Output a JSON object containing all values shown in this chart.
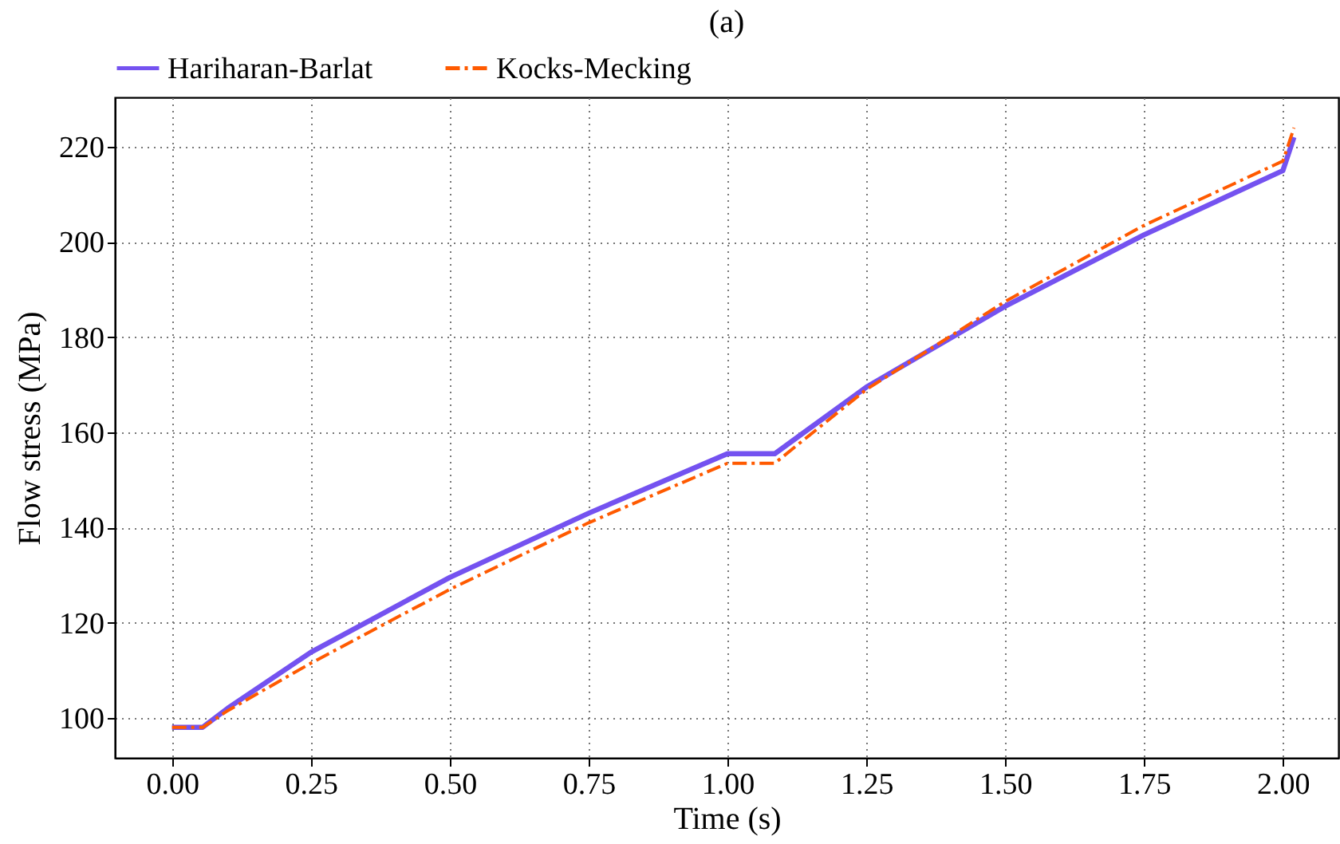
{
  "chart_data": {
    "type": "line",
    "title": "(a)",
    "xlabel": "Time (s)",
    "ylabel": "Flow stress (MPa)",
    "xlim": [
      -0.103,
      2.1
    ],
    "xticks": [
      {
        "value": 0,
        "label": "0.00"
      },
      {
        "value": 0.25,
        "label": "0.25"
      },
      {
        "value": 0.5,
        "label": "0.50"
      },
      {
        "value": 0.75,
        "label": "0.75"
      },
      {
        "value": 1,
        "label": "1.00"
      },
      {
        "value": 1.25,
        "label": "1.25"
      },
      {
        "value": 1.5,
        "label": "1.50"
      },
      {
        "value": 1.75,
        "label": "1.75"
      },
      {
        "value": 2,
        "label": "2.00"
      }
    ],
    "ylim": [
      91.6,
      230.4
    ],
    "yticks": [
      100,
      120,
      140,
      160,
      180,
      200,
      220
    ],
    "grid": true,
    "legend": "top",
    "marker": "none",
    "x": [
      0,
      0.055,
      0.1,
      0.25,
      0.5,
      0.75,
      1.0,
      1.085,
      1.25,
      1.5,
      1.75,
      2.0,
      2.02
    ],
    "series": [
      {
        "name": "Hariharan-Barlat",
        "color": "#7452f0",
        "line_style": "solid",
        "values": [
          98,
          98,
          102,
          113.8,
          129.5,
          143,
          155.5,
          155.5,
          169.5,
          186.5,
          201.5,
          215,
          222
        ]
      },
      {
        "name": "Kocks-Mecking",
        "color": "#ff5a00",
        "line_style": "dashdot",
        "values": [
          98,
          98,
          101.5,
          111.5,
          127,
          141,
          153.5,
          153.5,
          169,
          187.5,
          203.5,
          217,
          224
        ]
      }
    ]
  }
}
